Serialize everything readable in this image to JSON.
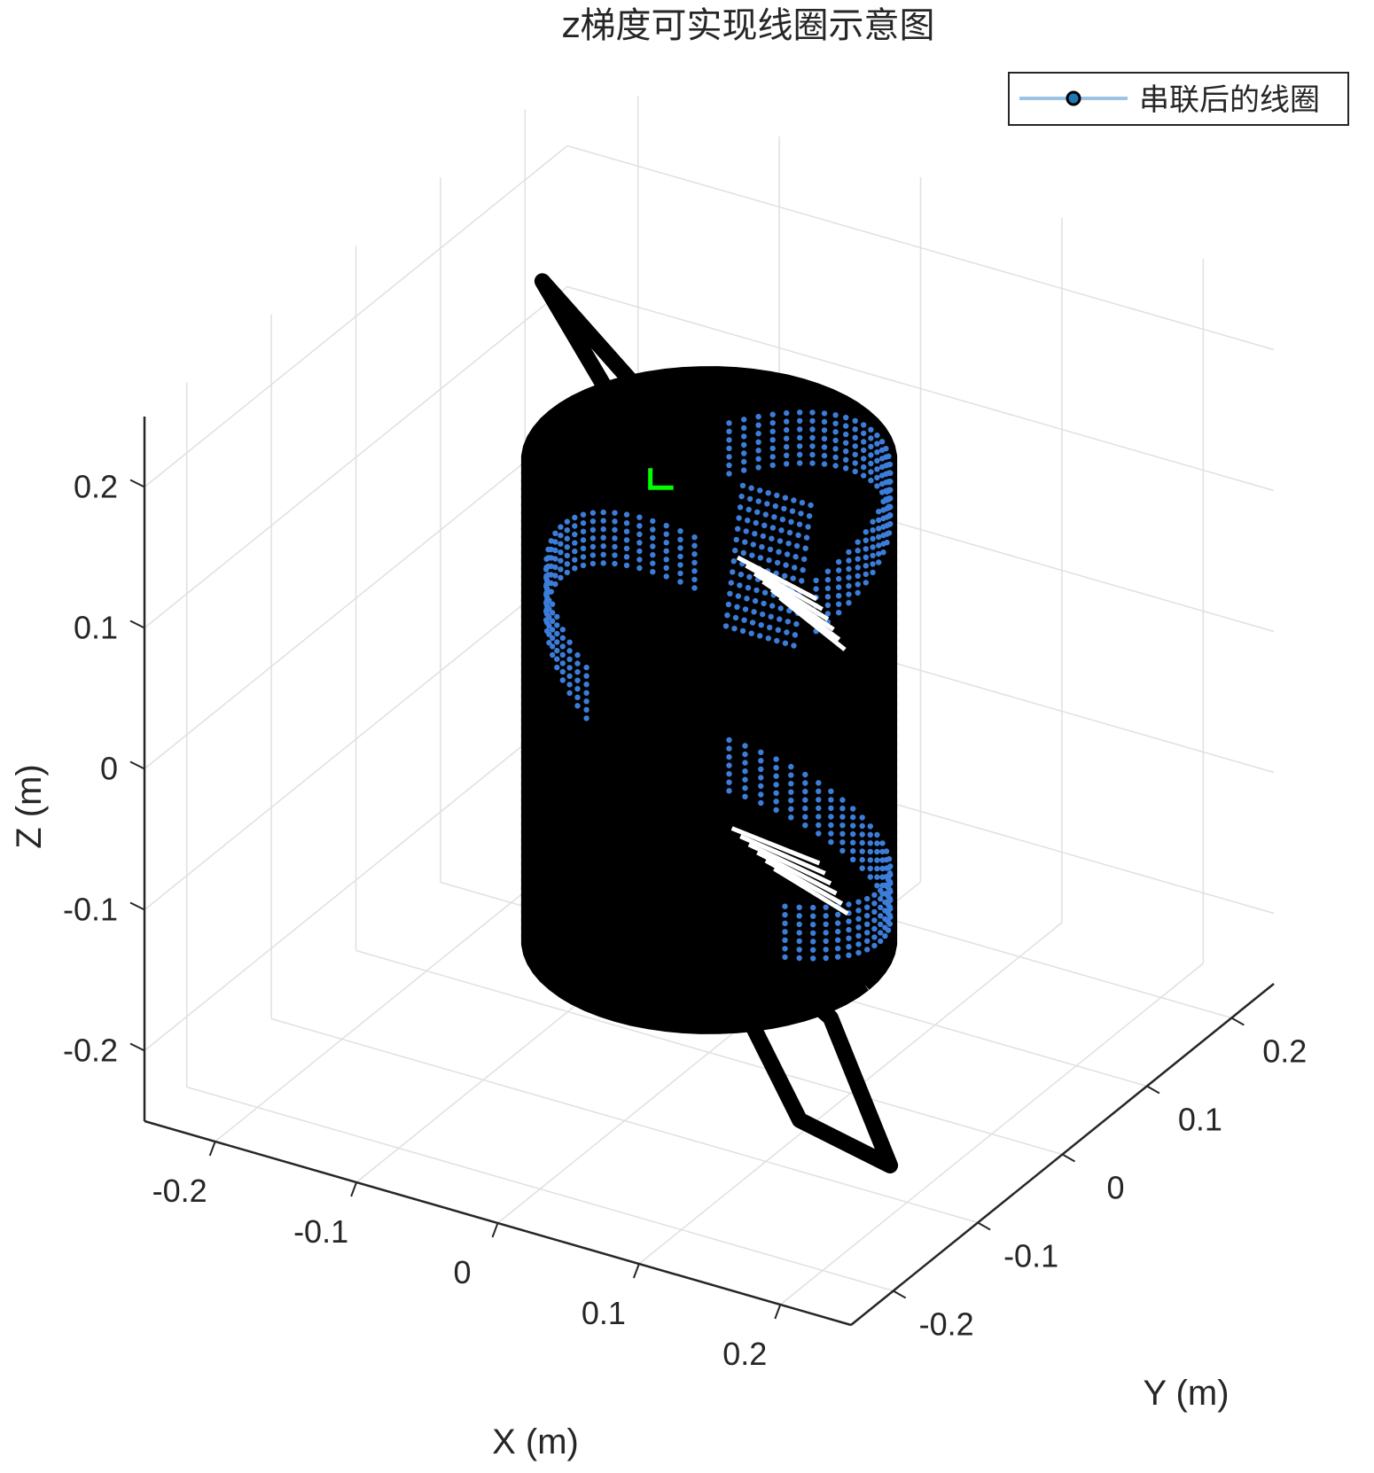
{
  "chart_data": {
    "type": "scatter",
    "projection": "3d",
    "title": "z梯度可实现线圈示意图",
    "xlabel": "X (m)",
    "ylabel": "Y (m)",
    "zlabel": "Z (m)",
    "x_ticks": [
      "-0.2",
      "-0.1",
      "0",
      "0.1",
      "0.2"
    ],
    "y_ticks": [
      "-0.2",
      "-0.1",
      "0",
      "0.1",
      "0.2"
    ],
    "z_ticks": [
      "0.2",
      "0.1",
      "0",
      "-0.1",
      "-0.2"
    ],
    "xlim": [
      -0.25,
      0.25
    ],
    "ylim": [
      -0.25,
      0.25
    ],
    "zlim": [
      -0.25,
      0.25
    ],
    "grid": true,
    "legend_position": "top-right",
    "series": [
      {
        "name": "串联后的线圈",
        "line_color": "#9dc3e6",
        "marker_face": "#1f77b4",
        "marker_edge": "#000000"
      }
    ],
    "cylinder": {
      "radius": 0.11,
      "z_top": 0.17,
      "z_bottom": -0.17
    },
    "highlight_color": "#00ff00",
    "point_color": "#3c7dd9",
    "coil_color": "#000000"
  }
}
